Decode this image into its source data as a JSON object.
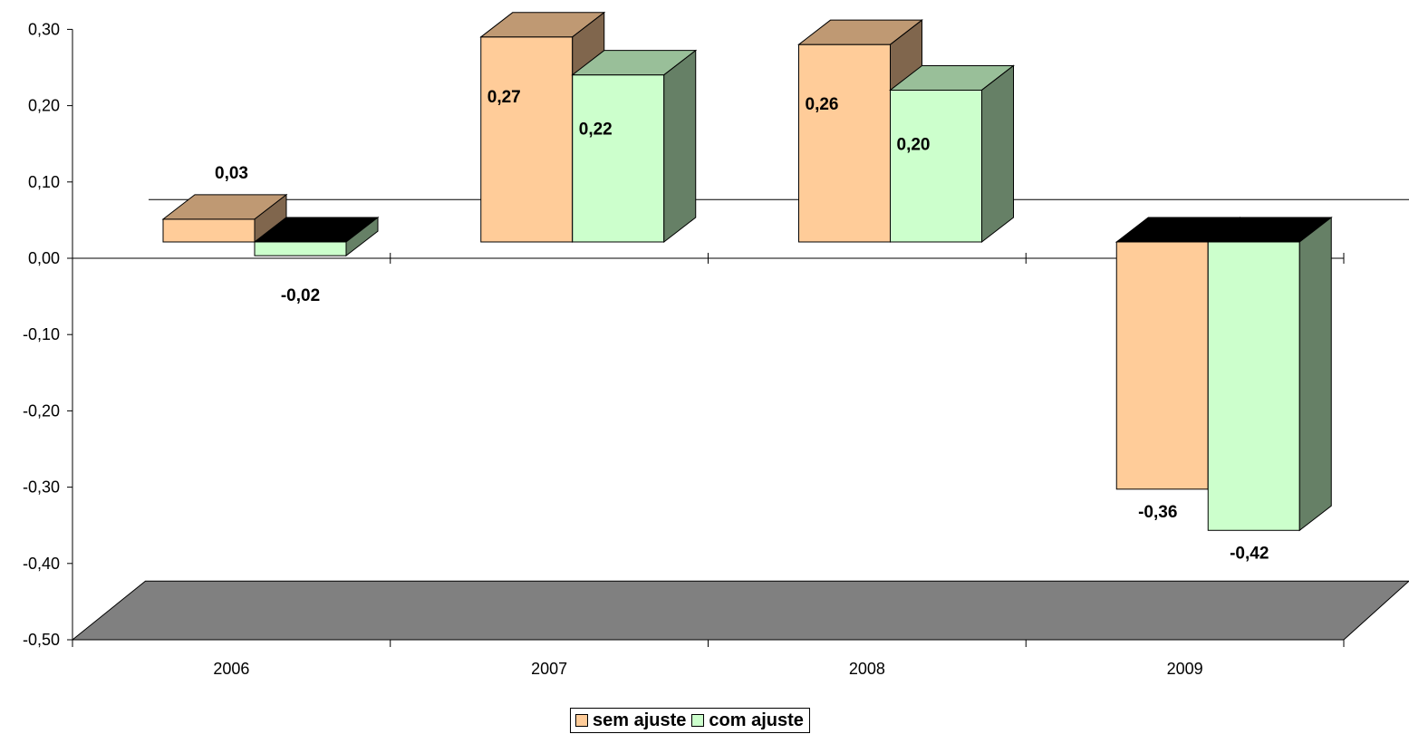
{
  "chart_data": {
    "type": "bar",
    "categories": [
      "2006",
      "2007",
      "2008",
      "2009"
    ],
    "series": [
      {
        "name": "sem ajuste",
        "values": [
          0.03,
          0.27,
          0.26,
          -0.36
        ],
        "labels": [
          "0,03",
          "0,27",
          "0,26",
          "-0,36"
        ],
        "color": "#FFCC99"
      },
      {
        "name": "com ajuste",
        "values": [
          -0.02,
          0.22,
          0.2,
          -0.42
        ],
        "labels": [
          "-0,02",
          "0,22",
          "0,20",
          "-0,42"
        ],
        "color": "#CCFFCC"
      }
    ],
    "yticks": [
      0.3,
      0.2,
      0.1,
      0.0,
      -0.1,
      -0.2,
      -0.3,
      -0.4,
      -0.5
    ],
    "ytick_labels": [
      "0,30",
      "0,20",
      "0,10",
      "0,00",
      "-0,10",
      "-0,20",
      "-0,30",
      "-0,40",
      "-0,50"
    ],
    "ylim": [
      -0.5,
      0.3
    ],
    "title": "",
    "xlabel": "",
    "ylabel": "",
    "legend": "bottom",
    "floor_color": "#808080",
    "grid": false,
    "three_d": true
  }
}
